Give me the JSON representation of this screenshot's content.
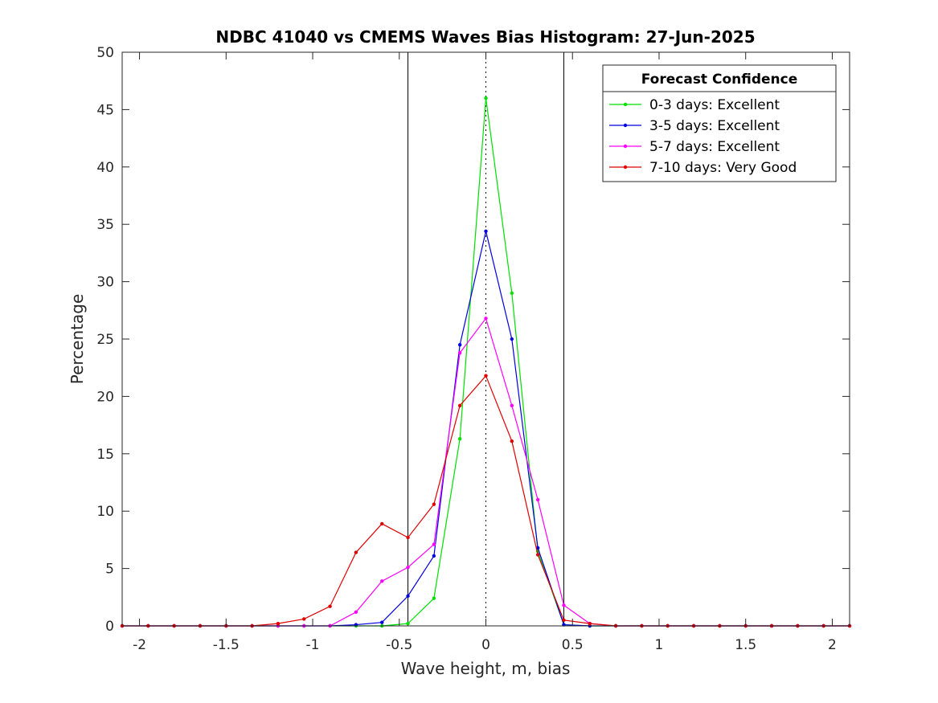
{
  "chart_data": {
    "type": "line",
    "title": "NDBC 41040 vs CMEMS Waves Bias Histogram: 27-Jun-2025",
    "xlabel": "Wave height, m, bias",
    "ylabel": "Percentage",
    "xlim": [
      -2.1,
      2.1
    ],
    "ylim": [
      0,
      50
    ],
    "xticks": [
      -2,
      -1.5,
      -1,
      -0.5,
      0,
      0.5,
      1,
      1.5,
      2
    ],
    "yticks": [
      0,
      5,
      10,
      15,
      20,
      25,
      30,
      35,
      40,
      45,
      50
    ],
    "reference_lines": [
      {
        "x": -0.45,
        "style": "solid"
      },
      {
        "x": 0,
        "style": "dotted"
      },
      {
        "x": 0.45,
        "style": "solid"
      }
    ],
    "legend": {
      "title": "Forecast Confidence",
      "position": "top-right"
    },
    "x": [
      -2.1,
      -1.95,
      -1.8,
      -1.65,
      -1.5,
      -1.35,
      -1.2,
      -1.05,
      -0.9,
      -0.75,
      -0.6,
      -0.45,
      -0.3,
      -0.15,
      0,
      0.15,
      0.3,
      0.45,
      0.6,
      0.75,
      0.9,
      1.05,
      1.2,
      1.35,
      1.5,
      1.65,
      1.8,
      1.95,
      2.1
    ],
    "series": [
      {
        "name": "0-3 days: Excellent",
        "color": "#00e000",
        "values": [
          0,
          0,
          0,
          0,
          0,
          0,
          0,
          0,
          0,
          0,
          0,
          0.2,
          2.4,
          16.3,
          46.0,
          29.0,
          6.5,
          0.1,
          0,
          0,
          0,
          0,
          0,
          0,
          0,
          0,
          0,
          0,
          0
        ]
      },
      {
        "name": "3-5 days: Excellent",
        "color": "#0000e0",
        "values": [
          0,
          0,
          0,
          0,
          0,
          0,
          0,
          0,
          0,
          0.1,
          0.3,
          2.6,
          6.1,
          24.5,
          34.4,
          25.0,
          6.8,
          0.1,
          0,
          0,
          0,
          0,
          0,
          0,
          0,
          0,
          0,
          0,
          0
        ]
      },
      {
        "name": "5-7 days: Excellent",
        "color": "#ff00ff",
        "values": [
          0,
          0,
          0,
          0,
          0,
          0,
          0,
          0,
          0,
          1.2,
          3.9,
          5.1,
          7.1,
          23.8,
          26.8,
          19.2,
          11.0,
          1.8,
          0.2,
          0,
          0,
          0,
          0,
          0,
          0,
          0,
          0,
          0,
          0
        ]
      },
      {
        "name": "7-10 days: Very Good",
        "color": "#e00000",
        "values": [
          0,
          0,
          0,
          0,
          0,
          0,
          0.2,
          0.6,
          1.7,
          6.4,
          8.9,
          7.7,
          10.6,
          19.2,
          21.8,
          16.1,
          6.2,
          0.5,
          0.2,
          0,
          0,
          0,
          0,
          0,
          0,
          0,
          0,
          0,
          0
        ]
      }
    ]
  }
}
